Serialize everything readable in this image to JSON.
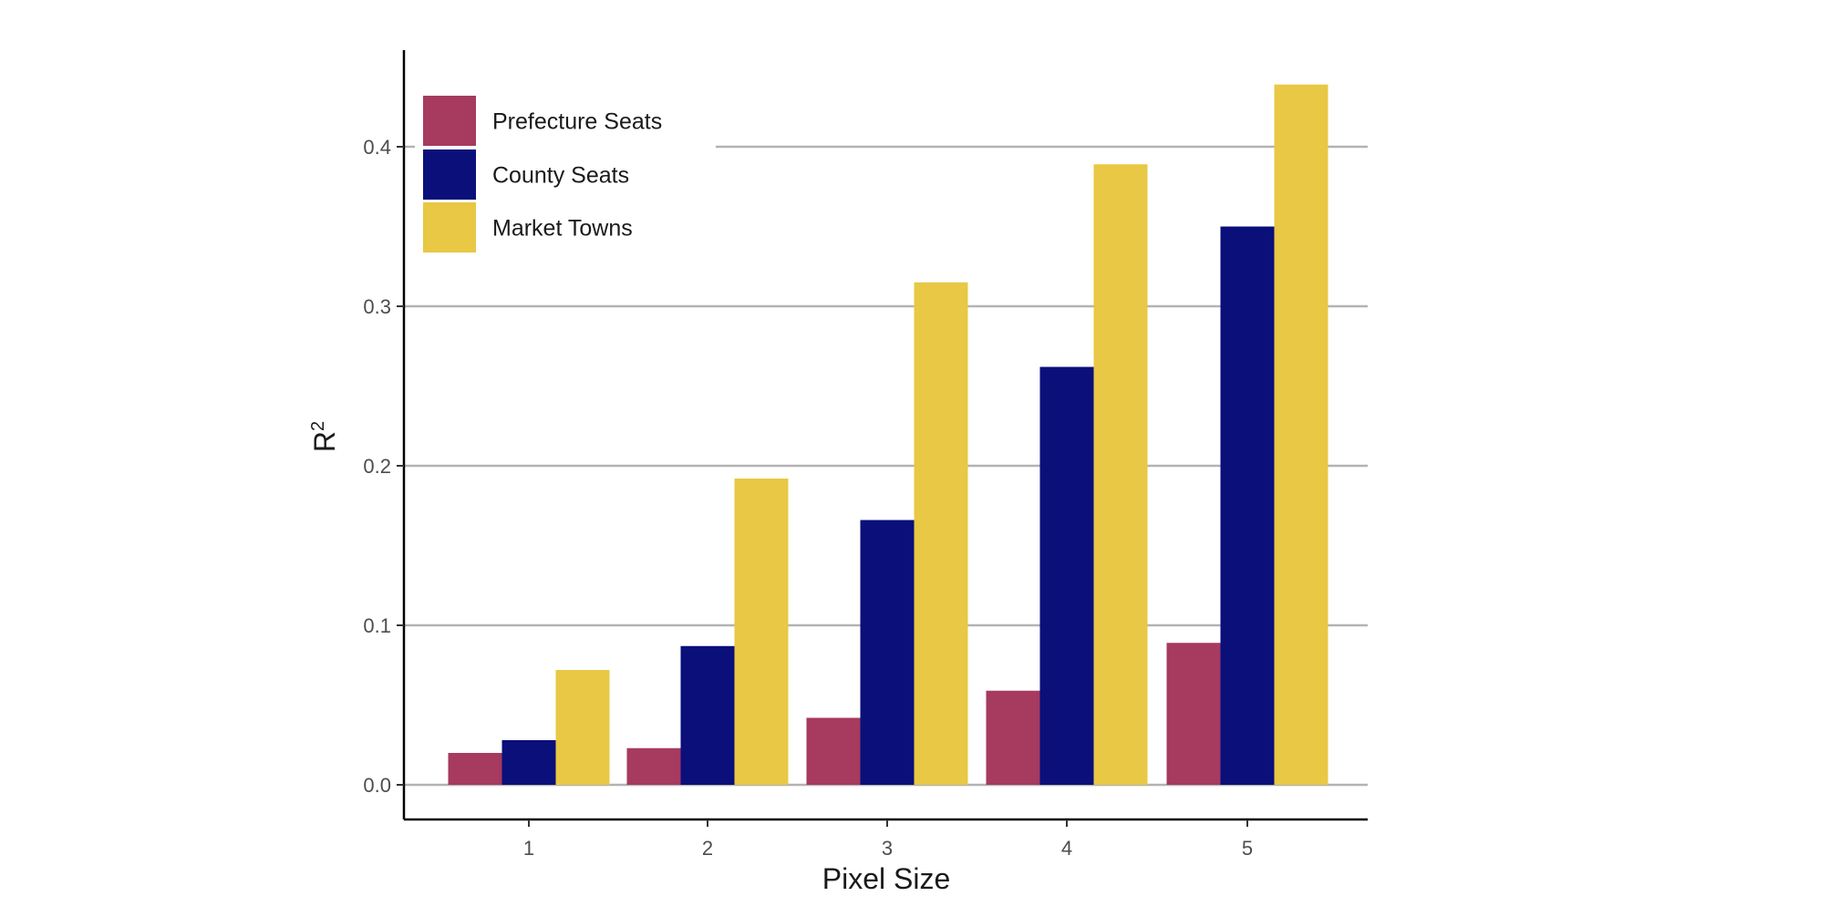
{
  "chart_data": {
    "type": "bar",
    "title": "",
    "xlabel": "Pixel Size",
    "ylabel": "R",
    "ylabel_superscript": "2",
    "categories": [
      "1",
      "2",
      "3",
      "4",
      "5"
    ],
    "ylim": [
      0,
      0.45
    ],
    "yticks": [
      "0.0",
      "0.1",
      "0.2",
      "0.3",
      "0.4"
    ],
    "grid": "horizontal major",
    "legend_position": "top-left",
    "series": [
      {
        "name": "Prefecture Seats",
        "color": "#a63a5f",
        "values": [
          0.02,
          0.023,
          0.042,
          0.059,
          0.089
        ]
      },
      {
        "name": "County Seats",
        "color": "#0a0f7a",
        "values": [
          0.028,
          0.087,
          0.166,
          0.262,
          0.35
        ]
      },
      {
        "name": "Market Towns",
        "color": "#e8c844",
        "values": [
          0.072,
          0.192,
          0.315,
          0.389,
          0.439
        ]
      }
    ]
  }
}
